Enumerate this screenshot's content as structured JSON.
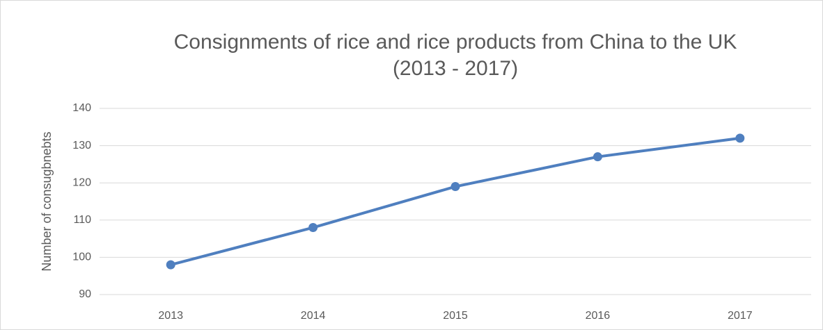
{
  "chart_data": {
    "type": "line",
    "title": [
      "Consignments of rice and rice products from China to the UK",
      "(2013 - 2017)"
    ],
    "ylabel": "Number of consugbnebts",
    "categories": [
      "2013",
      "2014",
      "2015",
      "2016",
      "2017"
    ],
    "values": [
      98,
      108,
      119,
      127,
      132
    ],
    "color": "#4f7fbf",
    "ylim": [
      90,
      140
    ],
    "yticks": [
      90,
      100,
      110,
      120,
      130,
      140
    ],
    "grid": true
  }
}
